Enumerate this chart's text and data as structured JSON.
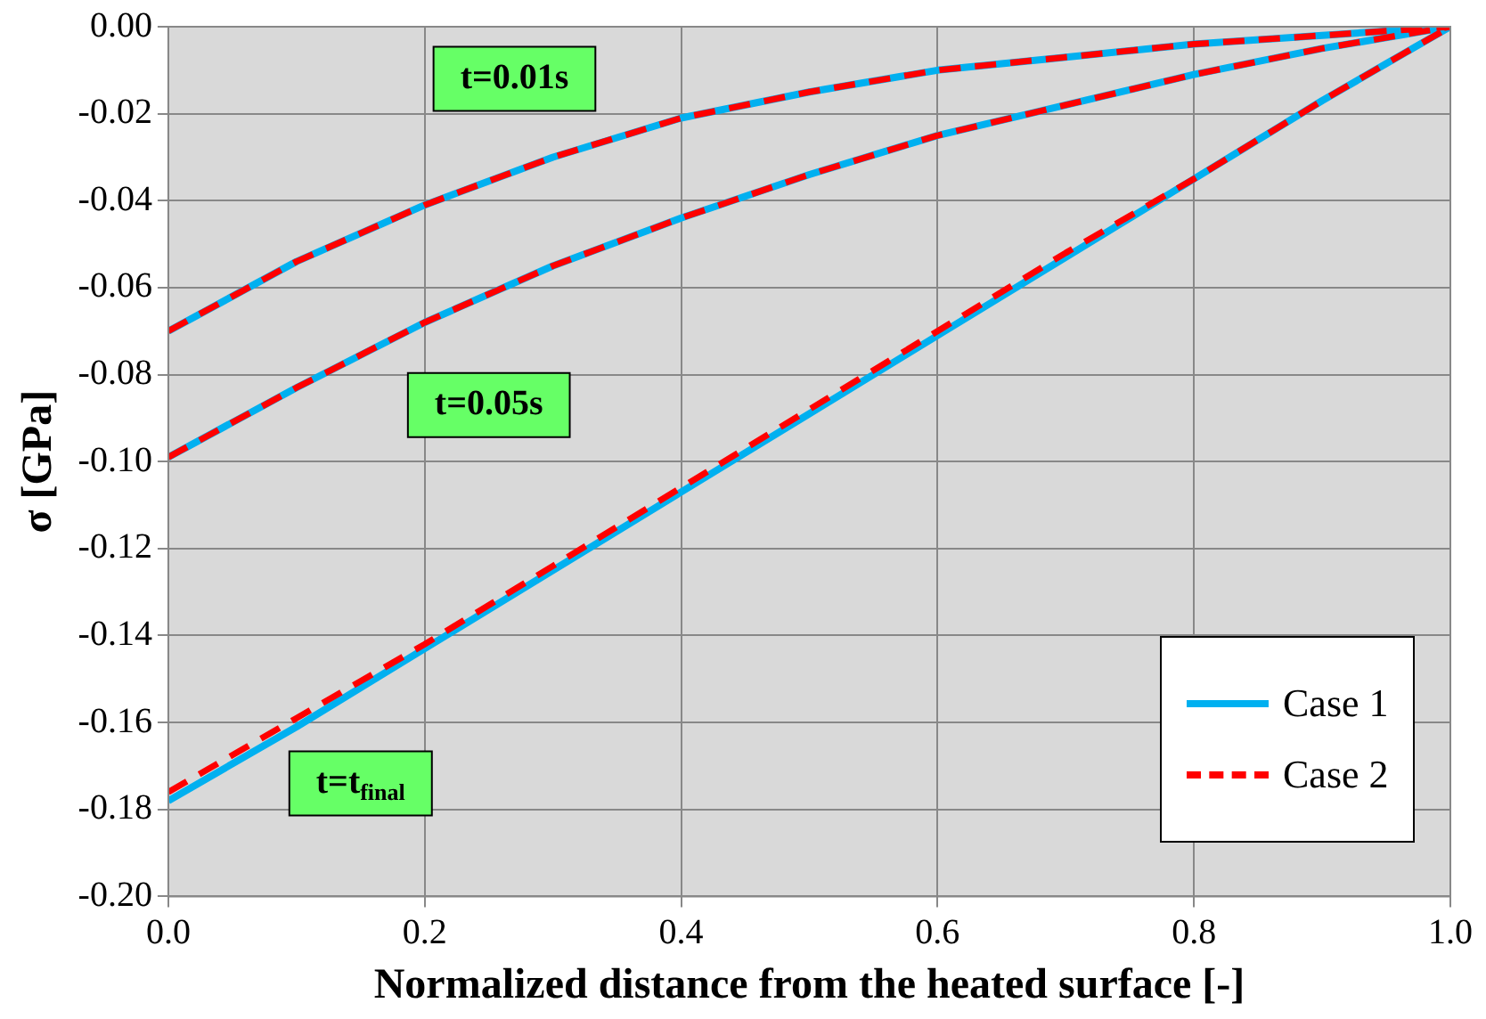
{
  "chart_data": {
    "type": "line",
    "xlabel": "Normalized distance from the heated surface [-]",
    "ylabel": "σ [GPa]",
    "xlim": [
      0,
      1
    ],
    "ylim": [
      -0.2,
      0
    ],
    "xticks": [
      {
        "value": 0,
        "label": "0.0"
      },
      {
        "value": 0.2,
        "label": "0.2"
      },
      {
        "value": 0.4,
        "label": "0.4"
      },
      {
        "value": 0.6,
        "label": "0.6"
      },
      {
        "value": 0.8,
        "label": "0.8"
      },
      {
        "value": 1,
        "label": "1.0"
      }
    ],
    "yticks": [
      {
        "value": -0.2,
        "label": "-0.20"
      },
      {
        "value": -0.18,
        "label": "-0.18"
      },
      {
        "value": -0.16,
        "label": "-0.16"
      },
      {
        "value": -0.14,
        "label": "-0.14"
      },
      {
        "value": -0.12,
        "label": "-0.12"
      },
      {
        "value": -0.1,
        "label": "-0.10"
      },
      {
        "value": -0.08,
        "label": "-0.08"
      },
      {
        "value": -0.06,
        "label": "-0.06"
      },
      {
        "value": -0.04,
        "label": "-0.04"
      },
      {
        "value": -0.02,
        "label": "-0.02"
      },
      {
        "value": 0,
        "label": "0.00"
      }
    ],
    "grid": true,
    "legend": "bottom right",
    "marker": "none",
    "series": [
      {
        "name": "Case 1",
        "color": "#00b0f0",
        "line_style": "solid",
        "x": [
          0,
          0.1,
          0.2,
          0.3,
          0.4,
          0.5,
          0.6,
          0.7,
          0.8,
          0.9,
          1
        ],
        "values": [
          -0.07,
          -0.054,
          -0.041,
          -0.03,
          -0.021,
          -0.015,
          -0.01,
          -0.007,
          -0.004,
          -0.002,
          0
        ]
      },
      {
        "color": "#00b0f0",
        "line_style": "solid",
        "x": [
          0,
          0.1,
          0.2,
          0.3,
          0.4,
          0.5,
          0.6,
          0.7,
          0.8,
          0.9,
          1
        ],
        "values": [
          -0.099,
          -0.083,
          -0.068,
          -0.055,
          -0.044,
          -0.034,
          -0.025,
          -0.018,
          -0.011,
          -0.005,
          0
        ]
      },
      {
        "color": "#00b0f0",
        "line_style": "solid",
        "x": [
          0,
          0.1,
          0.2,
          0.3,
          0.4,
          0.5,
          0.6,
          0.7,
          0.8,
          0.9,
          1
        ],
        "values": [
          -0.178,
          -0.161,
          -0.143,
          -0.125,
          -0.107,
          -0.089,
          -0.071,
          -0.053,
          -0.035,
          -0.017,
          0
        ]
      },
      {
        "name": "Case 2",
        "color": "#ff0000",
        "line_style": "dashed",
        "x": [
          0,
          0.1,
          0.2,
          0.3,
          0.4,
          0.5,
          0.6,
          0.7,
          0.8,
          0.9,
          1
        ],
        "values": [
          -0.07,
          -0.054,
          -0.041,
          -0.03,
          -0.021,
          -0.015,
          -0.01,
          -0.007,
          -0.004,
          -0.002,
          0
        ]
      },
      {
        "color": "#ff0000",
        "line_style": "dashed",
        "x": [
          0,
          0.1,
          0.2,
          0.3,
          0.4,
          0.5,
          0.6,
          0.7,
          0.8,
          0.9,
          1
        ],
        "values": [
          -0.099,
          -0.083,
          -0.068,
          -0.055,
          -0.044,
          -0.034,
          -0.025,
          -0.018,
          -0.011,
          -0.005,
          0
        ]
      },
      {
        "color": "#ff0000",
        "line_style": "dashed",
        "x": [
          0,
          0.1,
          0.2,
          0.3,
          0.4,
          0.5,
          0.6,
          0.7,
          0.8,
          0.9,
          1
        ],
        "values": [
          -0.176,
          -0.159,
          -0.142,
          -0.124,
          -0.106,
          -0.088,
          -0.07,
          -0.052,
          -0.035,
          -0.017,
          0
        ]
      }
    ],
    "annotations": [
      "t=0.01s",
      "t=0.05s",
      "t=t$_{final}$"
    ]
  }
}
